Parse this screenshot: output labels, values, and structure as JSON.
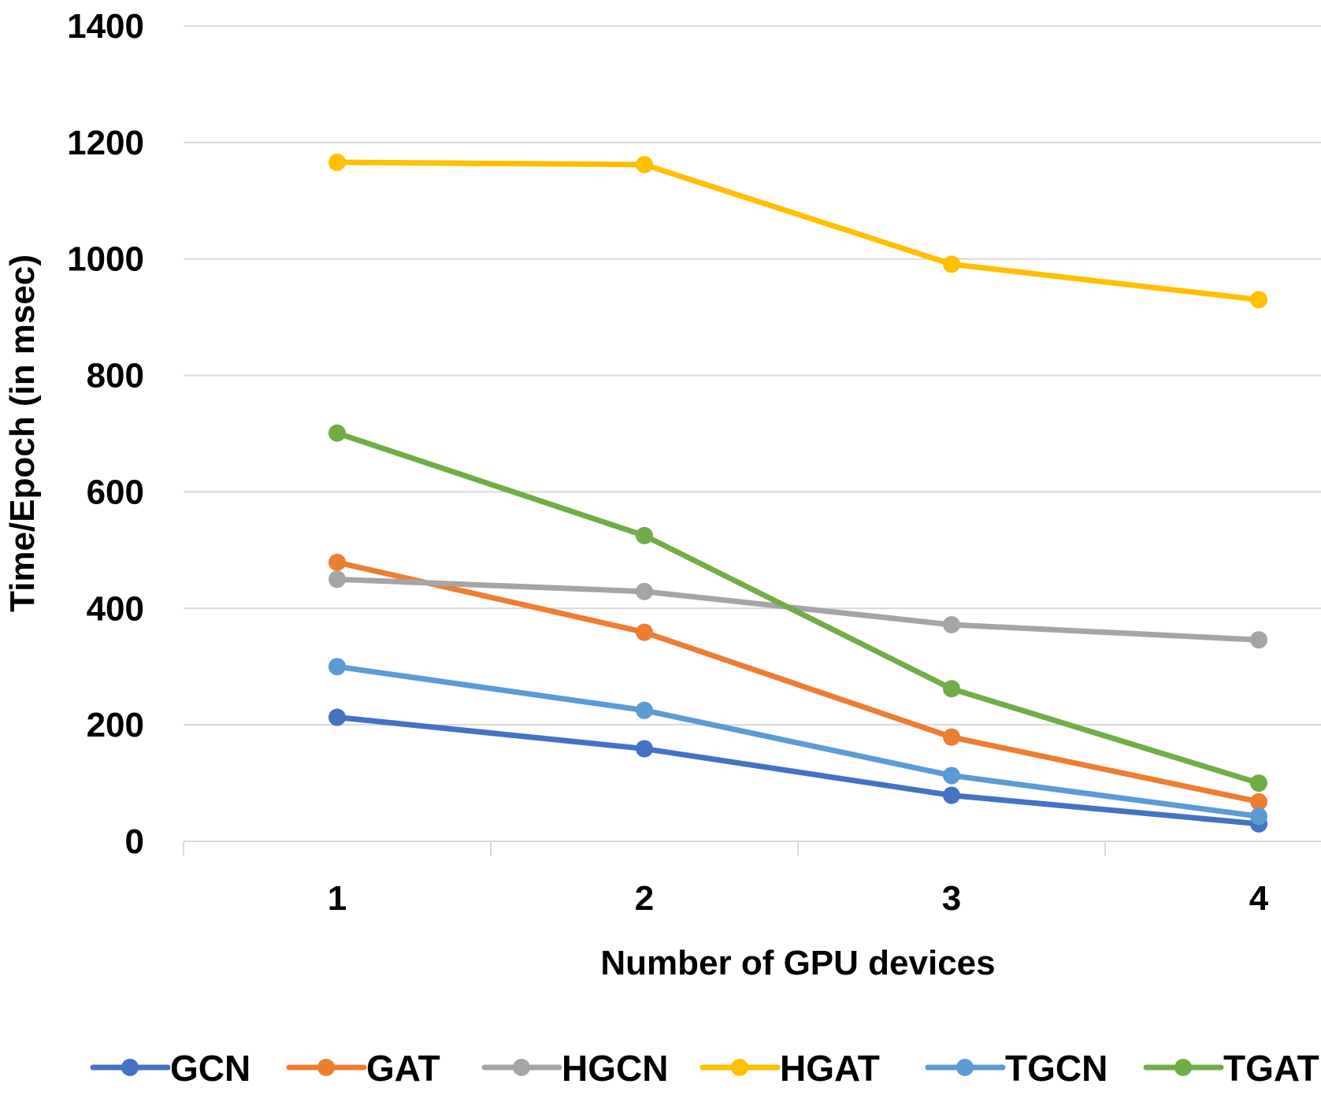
{
  "chart_data": {
    "type": "line",
    "title": "",
    "xlabel": "Number of GPU devices",
    "ylabel": "Time/Epoch  (in msec)",
    "categories": [
      "1",
      "2",
      "3",
      "4"
    ],
    "ylim": [
      0,
      1400
    ],
    "yticks": [
      "0",
      "200",
      "400",
      "600",
      "800",
      "1000",
      "1200",
      "1400"
    ],
    "grid": true,
    "legend_position": "bottom",
    "series": [
      {
        "name": "GCN",
        "color": "#4472c4",
        "values": [
          213,
          159,
          79,
          30
        ]
      },
      {
        "name": "GAT",
        "color": "#ed7d31",
        "values": [
          479,
          359,
          179,
          68
        ]
      },
      {
        "name": "HGCN",
        "color": "#a5a5a5",
        "values": [
          450,
          429,
          372,
          346
        ]
      },
      {
        "name": "HGAT",
        "color": "#ffc000",
        "values": [
          1166,
          1162,
          991,
          930
        ]
      },
      {
        "name": "TGCN",
        "color": "#5b9bd5",
        "values": [
          300,
          225,
          113,
          43
        ]
      },
      {
        "name": "TGAT",
        "color": "#70ad47",
        "values": [
          701,
          525,
          262,
          100
        ]
      }
    ]
  }
}
